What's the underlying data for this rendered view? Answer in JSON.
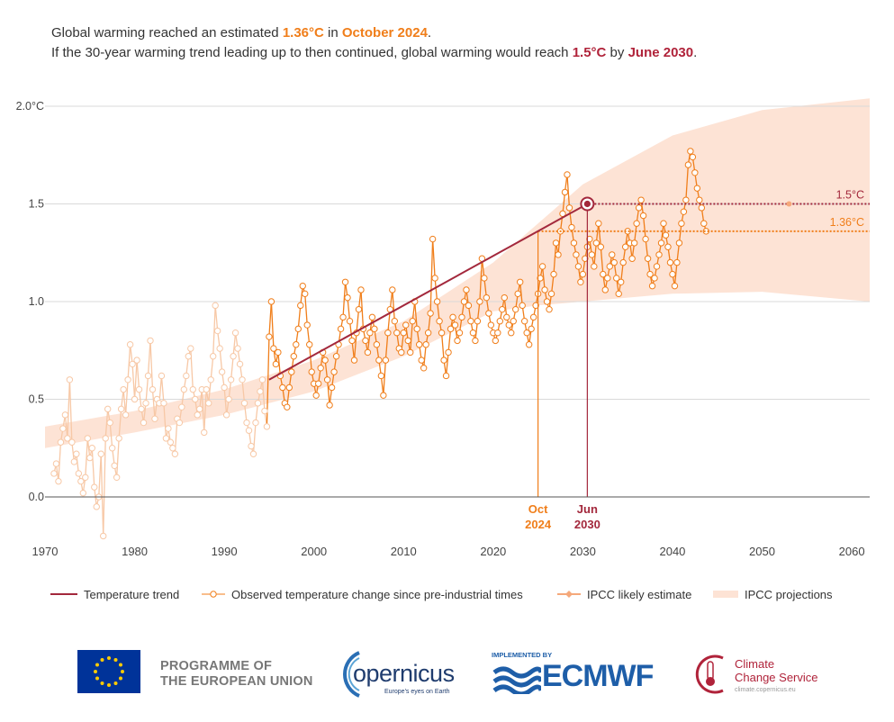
{
  "headline": {
    "line1_prefix": "Global warming reached an estimated ",
    "line1_value": "1.36°C",
    "line1_mid": " in ",
    "line1_date": "October 2024",
    "line1_end": ".",
    "line2_prefix": "If the 30-year warming trend leading up to then continued, global warming would reach ",
    "line2_value": "1.5°C",
    "line2_mid": " by ",
    "line2_date": "June 2030",
    "line2_end": "."
  },
  "chart_data": {
    "type": "line",
    "title": "Global warming reached an estimated 1.36°C in October 2024",
    "xlabel": "",
    "ylabel": "",
    "xlim": [
      1970,
      2062
    ],
    "ylim": [
      -0.22,
      2.05
    ],
    "x_ticks": [
      1970,
      1980,
      1990,
      2000,
      2010,
      2020,
      2030,
      2040,
      2050,
      2060
    ],
    "y_ticks": [
      0.0,
      0.5,
      1.0,
      1.5,
      2.0
    ],
    "y_tick_labels": [
      "0.0",
      "0.5",
      "1.0",
      "1.5",
      "2.0°C"
    ],
    "grid": true,
    "colors": {
      "trend": "#a3283c",
      "observed": "#f07e1a",
      "observed_faded": "#f7c8a6",
      "projection": "#fde3d5",
      "ipcc": "#f5a87a",
      "axis": "#555555",
      "grid": "#d9d9d9"
    },
    "series": [
      {
        "name": "Temperature trend",
        "type": "line",
        "x": [
          1995.0,
          2030.5
        ],
        "y": [
          0.6,
          1.5
        ]
      },
      {
        "name": "Observed temperature change since pre-industrial times",
        "type": "line-markers",
        "x_start": 1971.0,
        "step": 0.25,
        "y": [
          0.12,
          0.17,
          0.08,
          0.28,
          0.35,
          0.42,
          0.3,
          0.6,
          0.28,
          0.18,
          0.22,
          0.12,
          0.08,
          0.02,
          0.1,
          0.3,
          0.2,
          0.25,
          0.05,
          -0.05,
          0.0,
          0.22,
          -0.2,
          0.3,
          0.45,
          0.38,
          0.25,
          0.16,
          0.1,
          0.3,
          0.45,
          0.55,
          0.42,
          0.6,
          0.78,
          0.68,
          0.5,
          0.7,
          0.55,
          0.45,
          0.38,
          0.48,
          0.62,
          0.8,
          0.55,
          0.4,
          0.5,
          0.48,
          0.62,
          0.48,
          0.3,
          0.35,
          0.28,
          0.25,
          0.22,
          0.4,
          0.38,
          0.46,
          0.55,
          0.62,
          0.72,
          0.76,
          0.55,
          0.5,
          0.42,
          0.45,
          0.55,
          0.33,
          0.55,
          0.48,
          0.6,
          0.72,
          0.98,
          0.85,
          0.76,
          0.64,
          0.56,
          0.42,
          0.5,
          0.6,
          0.72,
          0.84,
          0.76,
          0.68,
          0.6,
          0.48,
          0.38,
          0.34,
          0.26,
          0.22,
          0.38,
          0.48,
          0.54,
          0.6,
          0.44,
          0.36,
          0.82,
          1.0,
          0.76,
          0.68,
          0.74,
          0.62,
          0.56,
          0.48,
          0.46,
          0.56,
          0.64,
          0.72,
          0.78,
          0.86,
          0.98,
          1.08,
          1.04,
          0.88,
          0.78,
          0.64,
          0.58,
          0.52,
          0.58,
          0.66,
          0.74,
          0.7,
          0.6,
          0.47,
          0.56,
          0.64,
          0.72,
          0.78,
          0.86,
          0.92,
          1.1,
          1.02,
          0.9,
          0.8,
          0.7,
          0.84,
          0.96,
          1.06,
          0.86,
          0.8,
          0.74,
          0.84,
          0.92,
          0.86,
          0.78,
          0.7,
          0.62,
          0.52,
          0.7,
          0.84,
          0.96,
          1.06,
          0.9,
          0.84,
          0.76,
          0.74,
          0.84,
          0.88,
          0.8,
          0.74,
          0.9,
          1.0,
          0.86,
          0.78,
          0.7,
          0.66,
          0.78,
          0.84,
          0.94,
          1.32,
          1.12,
          1.0,
          0.9,
          0.84,
          0.7,
          0.62,
          0.74,
          0.86,
          0.92,
          0.88,
          0.8,
          0.84,
          0.92,
          1.0,
          1.06,
          0.98,
          0.9,
          0.84,
          0.8,
          0.9,
          1.0,
          1.22,
          1.12,
          1.02,
          0.94,
          0.88,
          0.84,
          0.8,
          0.84,
          0.9,
          0.96,
          1.02,
          0.92,
          0.88,
          0.84,
          0.9,
          0.96,
          1.04,
          1.1,
          0.98,
          0.9,
          0.84,
          0.78,
          0.86,
          0.92,
          0.98,
          1.04,
          1.12,
          1.18,
          1.06,
          1.0,
          0.96,
          1.04,
          1.14,
          1.3,
          1.24,
          1.36,
          1.45,
          1.56,
          1.65,
          1.48,
          1.38,
          1.3,
          1.24,
          1.18,
          1.1,
          1.14,
          1.22,
          1.28,
          1.32,
          1.24,
          1.18,
          1.3,
          1.4,
          1.28,
          1.14,
          1.06,
          1.12,
          1.18,
          1.24,
          1.2,
          1.12,
          1.04,
          1.1,
          1.2,
          1.28,
          1.36,
          1.3,
          1.22,
          1.3,
          1.4,
          1.48,
          1.52,
          1.44,
          1.32,
          1.22,
          1.14,
          1.08,
          1.12,
          1.18,
          1.24,
          1.3,
          1.4,
          1.34,
          1.28,
          1.2,
          1.14,
          1.08,
          1.2,
          1.3,
          1.4,
          1.46,
          1.52,
          1.7,
          1.77,
          1.74,
          1.66,
          1.58,
          1.52,
          1.48,
          1.4,
          1.36
        ]
      },
      {
        "name": "IPCC likely estimate",
        "type": "marker",
        "x": [
          2053.0
        ],
        "y": [
          1.5
        ]
      },
      {
        "name": "IPCC projections",
        "type": "band",
        "x": [
          1970,
          1980,
          1990,
          2000,
          2010,
          2020,
          2025,
          2030,
          2040,
          2050,
          2062
        ],
        "upper": [
          0.36,
          0.44,
          0.55,
          0.7,
          0.9,
          1.2,
          1.4,
          1.6,
          1.85,
          1.98,
          2.04
        ],
        "lower": [
          0.25,
          0.33,
          0.42,
          0.54,
          0.72,
          0.95,
          0.98,
          1.0,
          1.04,
          1.05,
          1.0
        ]
      }
    ],
    "reference_lines": [
      {
        "name": "1.5°C",
        "y": 1.5,
        "x_from": 2030.5,
        "label": "1.5°C",
        "color": "#a3283c"
      },
      {
        "name": "1.36°C",
        "y": 1.36,
        "x_from": 2025.0,
        "label": "1.36°C",
        "color": "#f07e1a"
      }
    ],
    "event_markers": [
      {
        "x": 2025.0,
        "y": 1.36,
        "label_month": "Oct",
        "label_year": "2024",
        "color": "#f07e1a"
      },
      {
        "x": 2030.5,
        "y": 1.5,
        "label_month": "Jun",
        "label_year": "2030",
        "color": "#a3283c"
      }
    ]
  },
  "legend": {
    "items": [
      {
        "label": "Temperature trend",
        "kind": "line",
        "color": "#a3283c"
      },
      {
        "label": "Observed temperature change since pre-industrial times",
        "kind": "line-marker",
        "color": "#f07e1a"
      },
      {
        "label": "IPCC likely estimate",
        "kind": "ipcc",
        "color": "#f5a87a"
      },
      {
        "label": "IPCC projections",
        "kind": "band",
        "color": "#fde3d5"
      }
    ]
  },
  "logos": {
    "eu_line1": "PROGRAMME OF",
    "eu_line2": "THE EUROPEAN UNION",
    "copernicus_word": "opernicus",
    "copernicus_tagline": "Europe's eyes on Earth",
    "ecmwf_implemented": "IMPLEMENTED BY",
    "ecmwf_word": "ECMWF",
    "c3s_line1": "Climate",
    "c3s_line2": "Change Service",
    "c3s_url": "climate.copernicus.eu",
    "eu_flag_icon": "eu-flag-icon",
    "copernicus_icon": "copernicus-arc-icon",
    "ecmwf_icon": "ecmwf-wave-icon",
    "c3s_icon": "thermometer-icon"
  }
}
